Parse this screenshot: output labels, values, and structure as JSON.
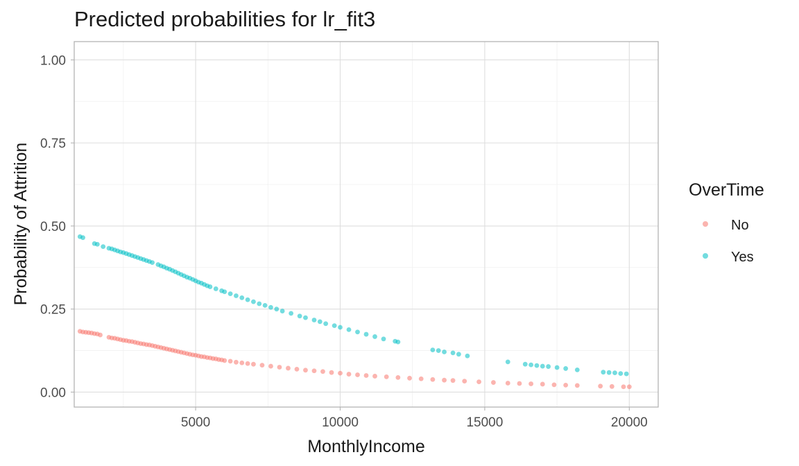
{
  "chart_data": {
    "type": "scatter",
    "title": "Predicted probabilities for lr_fit3",
    "xlabel": "MonthlyIncome",
    "ylabel": "Probability of Attrition",
    "xlim": [
      800,
      21000
    ],
    "ylim": [
      -0.045,
      1.055
    ],
    "x_ticks": [
      5000,
      10000,
      15000,
      20000
    ],
    "x_tick_labels": [
      "5000",
      "10000",
      "15000",
      "20000"
    ],
    "y_ticks": [
      0.0,
      0.25,
      0.5,
      0.75,
      1.0
    ],
    "y_tick_labels": [
      "0.00",
      "0.25",
      "0.50",
      "0.75",
      "1.00"
    ],
    "grid": true,
    "legend": {
      "title": "OverTime",
      "position": "right"
    },
    "series": [
      {
        "name": "No",
        "color": "#F8766D",
        "points": [
          [
            1000,
            0.183
          ],
          [
            1100,
            0.181
          ],
          [
            1200,
            0.18
          ],
          [
            1300,
            0.179
          ],
          [
            1400,
            0.178
          ],
          [
            1500,
            0.176
          ],
          [
            1600,
            0.175
          ],
          [
            1700,
            0.172
          ],
          [
            2000,
            0.165
          ],
          [
            2100,
            0.163
          ],
          [
            2200,
            0.162
          ],
          [
            2300,
            0.16
          ],
          [
            2400,
            0.158
          ],
          [
            2500,
            0.156
          ],
          [
            2600,
            0.155
          ],
          [
            2700,
            0.153
          ],
          [
            2800,
            0.152
          ],
          [
            2900,
            0.15
          ],
          [
            3000,
            0.148
          ],
          [
            3100,
            0.146
          ],
          [
            3200,
            0.145
          ],
          [
            3300,
            0.143
          ],
          [
            3400,
            0.142
          ],
          [
            3500,
            0.14
          ],
          [
            3600,
            0.138
          ],
          [
            3700,
            0.136
          ],
          [
            3800,
            0.134
          ],
          [
            3900,
            0.132
          ],
          [
            4000,
            0.13
          ],
          [
            4100,
            0.128
          ],
          [
            4200,
            0.126
          ],
          [
            4300,
            0.124
          ],
          [
            4400,
            0.122
          ],
          [
            4500,
            0.12
          ],
          [
            4600,
            0.118
          ],
          [
            4700,
            0.116
          ],
          [
            4800,
            0.114
          ],
          [
            4900,
            0.112
          ],
          [
            5000,
            0.111
          ],
          [
            5100,
            0.109
          ],
          [
            5200,
            0.107
          ],
          [
            5300,
            0.106
          ],
          [
            5400,
            0.104
          ],
          [
            5500,
            0.103
          ],
          [
            5600,
            0.101
          ],
          [
            5700,
            0.1
          ],
          [
            5800,
            0.098
          ],
          [
            5900,
            0.097
          ],
          [
            6000,
            0.095
          ],
          [
            6200,
            0.093
          ],
          [
            6400,
            0.09
          ],
          [
            6600,
            0.088
          ],
          [
            6800,
            0.086
          ],
          [
            7000,
            0.084
          ],
          [
            7300,
            0.081
          ],
          [
            7600,
            0.078
          ],
          [
            7900,
            0.075
          ],
          [
            8200,
            0.072
          ],
          [
            8500,
            0.069
          ],
          [
            8800,
            0.066
          ],
          [
            9100,
            0.064
          ],
          [
            9400,
            0.062
          ],
          [
            9700,
            0.059
          ],
          [
            10000,
            0.057
          ],
          [
            10300,
            0.054
          ],
          [
            10600,
            0.052
          ],
          [
            10900,
            0.05
          ],
          [
            11200,
            0.048
          ],
          [
            11600,
            0.046
          ],
          [
            12000,
            0.044
          ],
          [
            12400,
            0.042
          ],
          [
            12800,
            0.04
          ],
          [
            13200,
            0.038
          ],
          [
            13600,
            0.036
          ],
          [
            13900,
            0.035
          ],
          [
            14300,
            0.033
          ],
          [
            14800,
            0.031
          ],
          [
            15300,
            0.029
          ],
          [
            15800,
            0.027
          ],
          [
            16200,
            0.026
          ],
          [
            16600,
            0.025
          ],
          [
            17000,
            0.024
          ],
          [
            17400,
            0.022
          ],
          [
            17800,
            0.021
          ],
          [
            18200,
            0.02
          ],
          [
            19000,
            0.018
          ],
          [
            19400,
            0.017
          ],
          [
            19800,
            0.016
          ],
          [
            20000,
            0.016
          ]
        ]
      },
      {
        "name": "Yes",
        "color": "#00BFC4",
        "points": [
          [
            1000,
            0.468
          ],
          [
            1100,
            0.465
          ],
          [
            1500,
            0.447
          ],
          [
            1600,
            0.445
          ],
          [
            1800,
            0.438
          ],
          [
            2000,
            0.433
          ],
          [
            2100,
            0.431
          ],
          [
            2200,
            0.428
          ],
          [
            2300,
            0.425
          ],
          [
            2400,
            0.422
          ],
          [
            2500,
            0.42
          ],
          [
            2600,
            0.417
          ],
          [
            2700,
            0.414
          ],
          [
            2800,
            0.411
          ],
          [
            2900,
            0.408
          ],
          [
            3000,
            0.405
          ],
          [
            3100,
            0.402
          ],
          [
            3200,
            0.399
          ],
          [
            3300,
            0.396
          ],
          [
            3400,
            0.393
          ],
          [
            3500,
            0.39
          ],
          [
            3700,
            0.384
          ],
          [
            3800,
            0.38
          ],
          [
            3900,
            0.377
          ],
          [
            4000,
            0.373
          ],
          [
            4100,
            0.37
          ],
          [
            4200,
            0.366
          ],
          [
            4300,
            0.362
          ],
          [
            4400,
            0.358
          ],
          [
            4500,
            0.354
          ],
          [
            4600,
            0.35
          ],
          [
            4700,
            0.346
          ],
          [
            4800,
            0.343
          ],
          [
            4900,
            0.339
          ],
          [
            5000,
            0.335
          ],
          [
            5100,
            0.331
          ],
          [
            5200,
            0.328
          ],
          [
            5300,
            0.324
          ],
          [
            5400,
            0.32
          ],
          [
            5500,
            0.317
          ],
          [
            5700,
            0.311
          ],
          [
            5900,
            0.305
          ],
          [
            6000,
            0.302
          ],
          [
            6200,
            0.296
          ],
          [
            6400,
            0.29
          ],
          [
            6600,
            0.284
          ],
          [
            6800,
            0.278
          ],
          [
            7000,
            0.272
          ],
          [
            7200,
            0.266
          ],
          [
            7400,
            0.261
          ],
          [
            7600,
            0.255
          ],
          [
            7800,
            0.25
          ],
          [
            8000,
            0.244
          ],
          [
            8300,
            0.237
          ],
          [
            8600,
            0.229
          ],
          [
            8800,
            0.224
          ],
          [
            9100,
            0.217
          ],
          [
            9300,
            0.212
          ],
          [
            9500,
            0.206
          ],
          [
            9800,
            0.2
          ],
          [
            10000,
            0.195
          ],
          [
            10300,
            0.188
          ],
          [
            10600,
            0.181
          ],
          [
            10900,
            0.174
          ],
          [
            11200,
            0.167
          ],
          [
            11500,
            0.16
          ],
          [
            11900,
            0.153
          ],
          [
            12000,
            0.151
          ],
          [
            13200,
            0.127
          ],
          [
            13400,
            0.125
          ],
          [
            13600,
            0.121
          ],
          [
            13900,
            0.118
          ],
          [
            14100,
            0.114
          ],
          [
            14400,
            0.109
          ],
          [
            15800,
            0.091
          ],
          [
            16400,
            0.084
          ],
          [
            16600,
            0.082
          ],
          [
            16800,
            0.08
          ],
          [
            17000,
            0.078
          ],
          [
            17200,
            0.077
          ],
          [
            17500,
            0.074
          ],
          [
            17800,
            0.071
          ],
          [
            18200,
            0.067
          ],
          [
            19100,
            0.06
          ],
          [
            19300,
            0.059
          ],
          [
            19500,
            0.058
          ],
          [
            19700,
            0.056
          ],
          [
            19900,
            0.055
          ]
        ]
      }
    ]
  }
}
